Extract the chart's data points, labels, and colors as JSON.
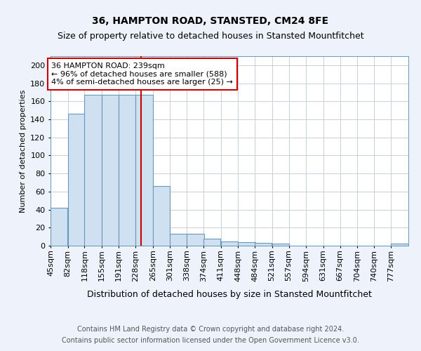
{
  "title1": "36, HAMPTON ROAD, STANSTED, CM24 8FE",
  "title2": "Size of property relative to detached houses in Stansted Mountfitchet",
  "xlabel": "Distribution of detached houses by size in Stansted Mountfitchet",
  "ylabel": "Number of detached properties",
  "footnote1": "Contains HM Land Registry data © Crown copyright and database right 2024.",
  "footnote2": "Contains public sector information licensed under the Open Government Licence v3.0.",
  "bin_labels": [
    "45sqm",
    "82sqm",
    "118sqm",
    "155sqm",
    "191sqm",
    "228sqm",
    "265sqm",
    "301sqm",
    "338sqm",
    "374sqm",
    "411sqm",
    "448sqm",
    "484sqm",
    "521sqm",
    "557sqm",
    "594sqm",
    "631sqm",
    "667sqm",
    "704sqm",
    "740sqm",
    "777sqm"
  ],
  "bin_edges": [
    45,
    82,
    118,
    155,
    191,
    228,
    265,
    301,
    338,
    374,
    411,
    448,
    484,
    521,
    557,
    594,
    631,
    667,
    704,
    740,
    777
  ],
  "bar_heights": [
    42,
    146,
    167,
    167,
    167,
    167,
    66,
    13,
    13,
    8,
    5,
    4,
    3,
    2,
    0,
    0,
    0,
    0,
    0,
    0,
    2
  ],
  "bar_color": "#cfe0f0",
  "bar_edge_color": "#6699bb",
  "bar_edge_width": 0.8,
  "grid_color": "#c8d0e0",
  "red_line_x": 239,
  "red_line_color": "#cc0000",
  "annotation_box_text": "36 HAMPTON ROAD: 239sqm\n← 96% of detached houses are smaller (588)\n4% of semi-detached houses are larger (25) →",
  "annotation_box_color": "#cc0000",
  "annotation_box_bg": "#ffffff",
  "ylim": [
    0,
    210
  ],
  "yticks": [
    0,
    20,
    40,
    60,
    80,
    100,
    120,
    140,
    160,
    180,
    200
  ],
  "plot_bg_color": "#ffffff",
  "fig_bg_color": "#eef2fa",
  "title1_fontsize": 10,
  "title2_fontsize": 9,
  "xlabel_fontsize": 9,
  "ylabel_fontsize": 8,
  "tick_fontsize": 8,
  "annotation_fontsize": 8,
  "footnote_fontsize": 7
}
